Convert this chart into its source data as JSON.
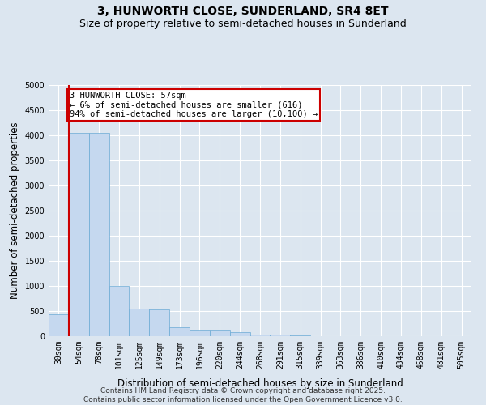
{
  "title": "3, HUNWORTH CLOSE, SUNDERLAND, SR4 8ET",
  "subtitle": "Size of property relative to semi-detached houses in Sunderland",
  "xlabel": "Distribution of semi-detached houses by size in Sunderland",
  "ylabel": "Number of semi-detached properties",
  "categories": [
    "30sqm",
    "54sqm",
    "78sqm",
    "101sqm",
    "125sqm",
    "149sqm",
    "173sqm",
    "196sqm",
    "220sqm",
    "244sqm",
    "268sqm",
    "291sqm",
    "315sqm",
    "339sqm",
    "363sqm",
    "386sqm",
    "410sqm",
    "434sqm",
    "458sqm",
    "481sqm",
    "505sqm"
  ],
  "values": [
    430,
    4050,
    4050,
    1000,
    550,
    540,
    170,
    115,
    115,
    80,
    40,
    30,
    10,
    0,
    0,
    0,
    0,
    0,
    0,
    0,
    0
  ],
  "bar_color": "#c5d8ef",
  "bar_edge_color": "#6aaad4",
  "highlight_line_color": "#cc0000",
  "highlight_bar_index": 1,
  "annotation_text": "3 HUNWORTH CLOSE: 57sqm\n← 6% of semi-detached houses are smaller (616)\n94% of semi-detached houses are larger (10,100) →",
  "annotation_box_edge_color": "#cc0000",
  "ylim": [
    0,
    5000
  ],
  "yticks": [
    0,
    500,
    1000,
    1500,
    2000,
    2500,
    3000,
    3500,
    4000,
    4500,
    5000
  ],
  "background_color": "#dce6f0",
  "plot_background": "#dce6f0",
  "grid_color": "#ffffff",
  "footer": "Contains HM Land Registry data © Crown copyright and database right 2025.\nContains public sector information licensed under the Open Government Licence v3.0.",
  "title_fontsize": 10,
  "subtitle_fontsize": 9,
  "axis_label_fontsize": 8.5,
  "tick_fontsize": 7,
  "annotation_fontsize": 7.5,
  "footer_fontsize": 6.5
}
